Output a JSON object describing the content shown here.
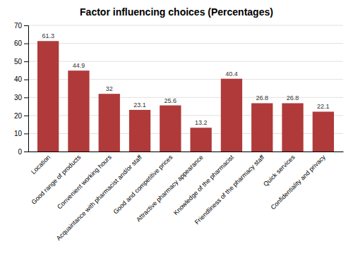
{
  "chart_data": {
    "type": "bar",
    "title": "Factor influencing choices (Percentages)",
    "categories": [
      "Location",
      "Good range of products",
      "Convenient working hours",
      "Acquaintance with pharmacist and/or staff",
      "Good and competitive prices",
      "Attractive pharmacy appearance",
      "Knowledge of the pharmacist",
      "Friendliness of the pharmacy staff",
      "Quick services",
      "Confidentiality and privacy"
    ],
    "values": [
      61.3,
      44.9,
      32,
      23.1,
      25.6,
      13.2,
      40.4,
      26.8,
      26.8,
      22.1
    ],
    "color": "#b03a3a",
    "ylim": [
      0,
      70
    ],
    "yticks": [
      0,
      10,
      20,
      30,
      40,
      50,
      60,
      70
    ],
    "grid": true,
    "data_labels": true
  }
}
